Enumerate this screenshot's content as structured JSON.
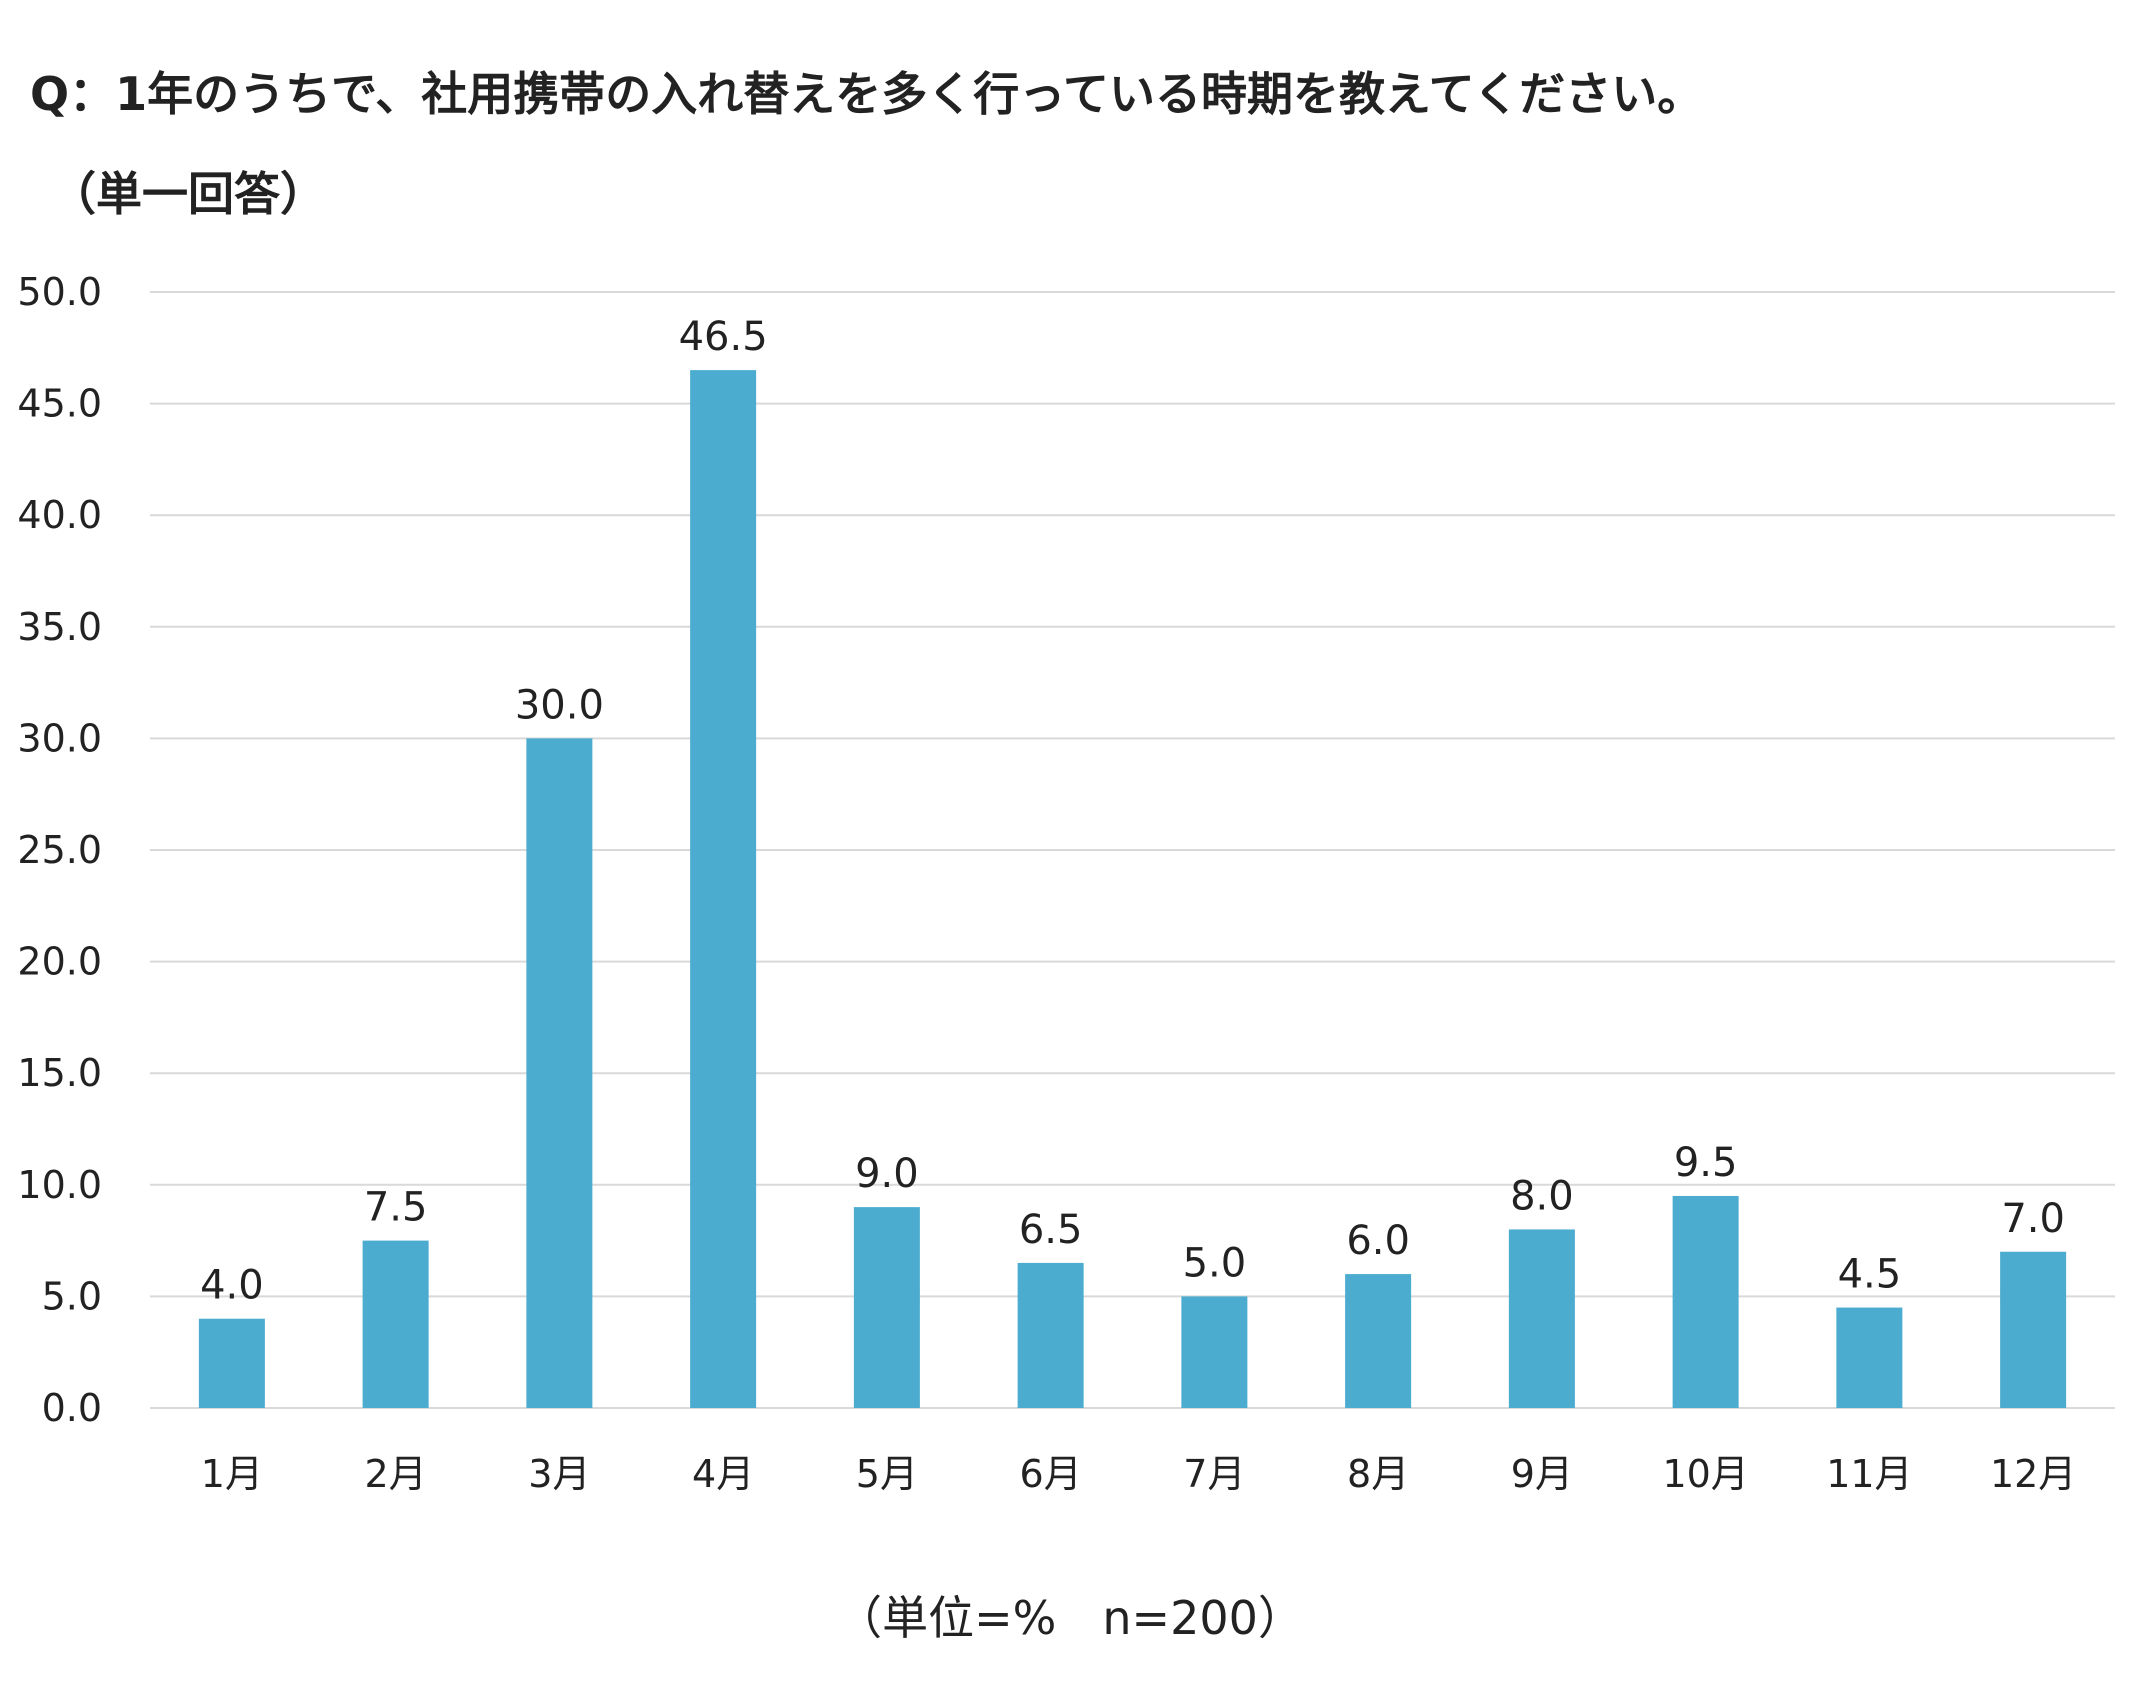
{
  "title": "Q：1年のうちで、社用携帯の入れ替えを多く行っている時期を教えてください。",
  "subtitle": "（単一回答）",
  "unit_note": "（単位=%　n=200）",
  "colors": {
    "bar": "#4bacd0",
    "grid": "#d9d9d9"
  },
  "chart_data": {
    "type": "bar",
    "title": "Q：1年のうちで、社用携帯の入れ替えを多く行っている時期を教えてください。",
    "categories": [
      "1月",
      "2月",
      "3月",
      "4月",
      "5月",
      "6月",
      "7月",
      "8月",
      "9月",
      "10月",
      "11月",
      "12月"
    ],
    "values": [
      4.0,
      7.5,
      30.0,
      46.5,
      9.0,
      6.5,
      5.0,
      6.0,
      8.0,
      9.5,
      4.5,
      7.0
    ],
    "value_labels": [
      "4.0",
      "7.5",
      "30.0",
      "46.5",
      "9.0",
      "6.5",
      "5.0",
      "6.0",
      "8.0",
      "9.5",
      "4.5",
      "7.0"
    ],
    "ylim": [
      0,
      50
    ],
    "yticks": [
      "0.0",
      "5.0",
      "10.0",
      "15.0",
      "20.0",
      "25.0",
      "30.0",
      "35.0",
      "40.0",
      "45.0",
      "50.0"
    ],
    "xlabel": "",
    "ylabel": "",
    "grid": true,
    "legend": "none"
  }
}
